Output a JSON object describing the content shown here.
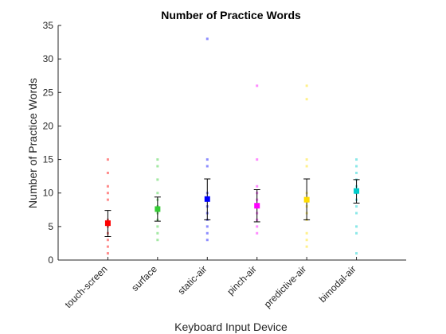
{
  "chart_data": {
    "type": "scatter",
    "title": "Number of Practice Words",
    "xlabel": "Keyboard Input Device",
    "ylabel": "Number of Practice Words",
    "categories": [
      "touch-screen",
      "surface",
      "static-air",
      "pinch-air",
      "predictive-air",
      "bimodal-air"
    ],
    "ylim": [
      0,
      35
    ],
    "yticks": [
      0,
      5,
      10,
      15,
      20,
      25,
      30,
      35
    ],
    "grid": false,
    "series": [
      {
        "category": "touch-screen",
        "color": "#ff0000",
        "mean": 5.5,
        "error_low": 3.5,
        "error_high": 7.4,
        "points": [
          15,
          13,
          11,
          10,
          9,
          6,
          5,
          4,
          3,
          2,
          1
        ]
      },
      {
        "category": "surface",
        "color": "#33cc33",
        "mean": 7.6,
        "error_low": 5.8,
        "error_high": 9.4,
        "points": [
          15,
          14,
          12,
          10,
          9,
          8,
          7,
          6,
          5,
          4,
          3
        ]
      },
      {
        "category": "static-air",
        "color": "#0000ff",
        "mean": 9.1,
        "error_low": 6.0,
        "error_high": 12.1,
        "points": [
          33,
          15,
          14,
          10,
          9,
          8,
          7,
          6,
          5,
          4,
          3
        ]
      },
      {
        "category": "pinch-air",
        "color": "#ff00ff",
        "mean": 8.1,
        "error_low": 5.7,
        "error_high": 10.5,
        "points": [
          26,
          15,
          11,
          10,
          9,
          8,
          7,
          6,
          5,
          4
        ]
      },
      {
        "category": "predictive-air",
        "color": "#ffdd00",
        "mean": 9.0,
        "error_low": 6.0,
        "error_high": 12.1,
        "points": [
          26,
          24,
          15,
          14,
          10,
          9,
          8,
          7,
          6,
          4,
          3,
          2
        ]
      },
      {
        "category": "bimodal-air",
        "color": "#00cccc",
        "mean": 10.3,
        "error_low": 8.5,
        "error_high": 12.0,
        "points": [
          15,
          14,
          13,
          12,
          11,
          10,
          9,
          8,
          7,
          5,
          4,
          1
        ]
      }
    ]
  }
}
